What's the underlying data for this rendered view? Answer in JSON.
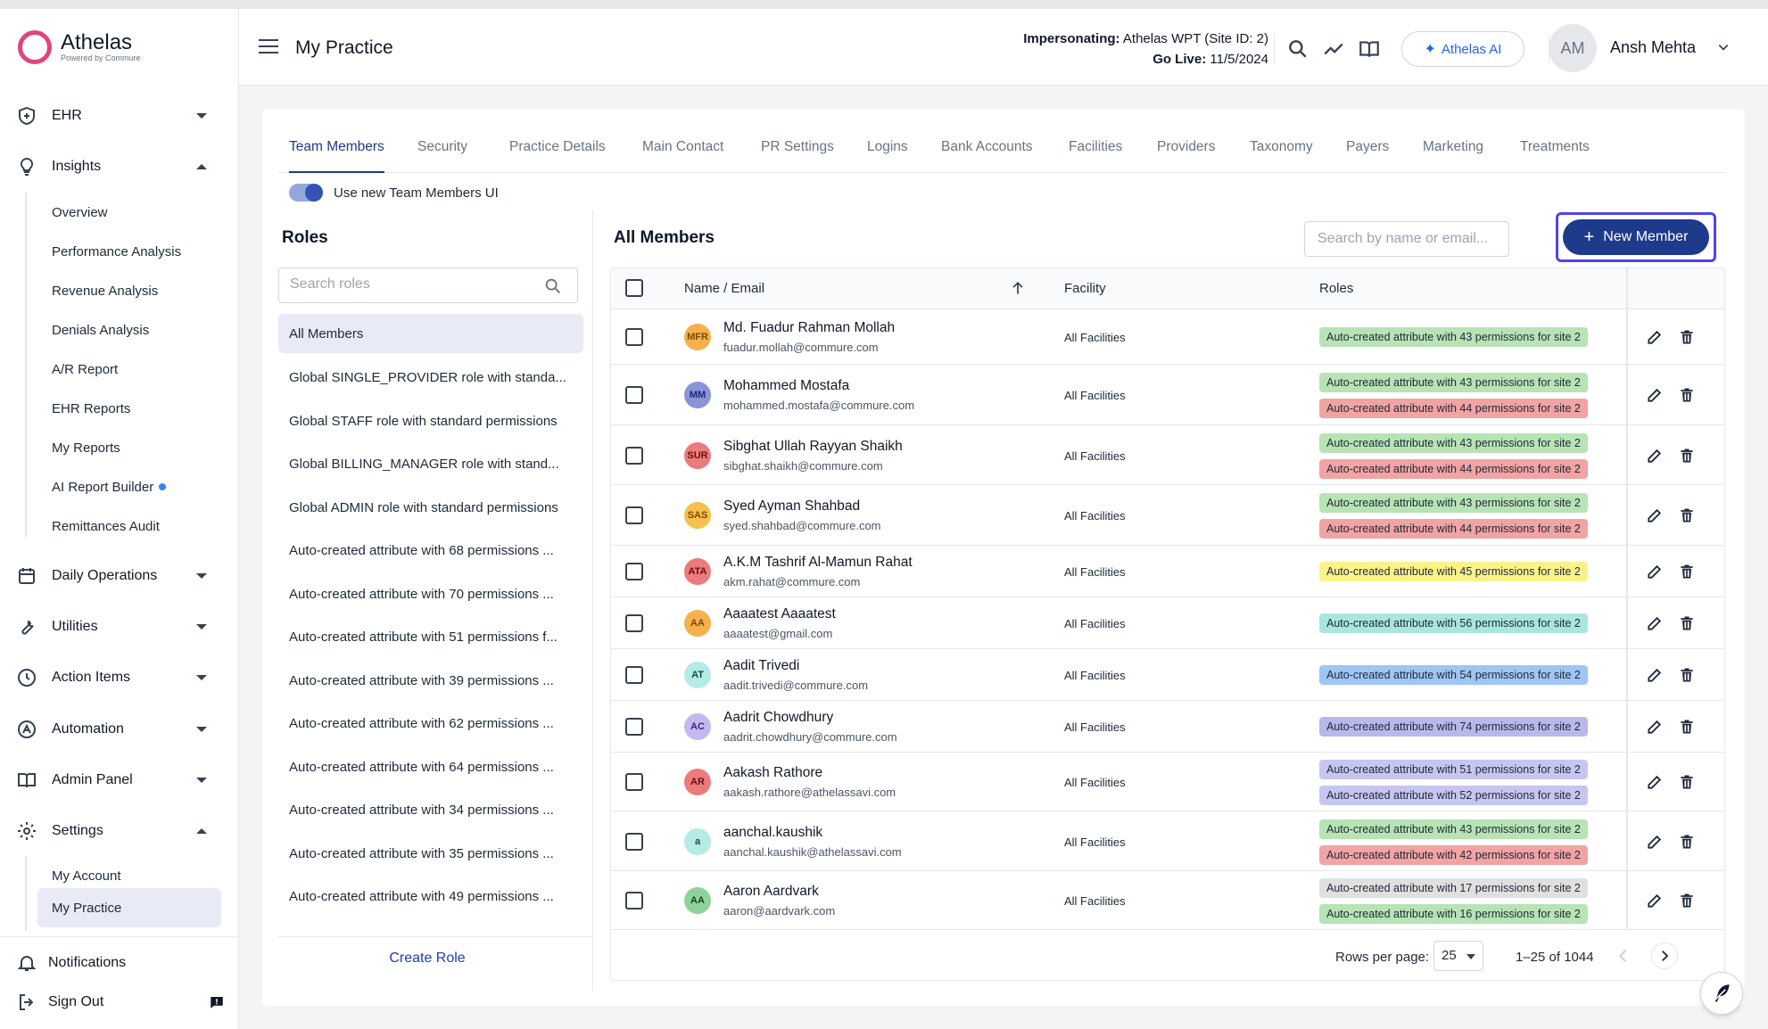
{
  "app": {
    "name": "Athelas",
    "tagline": "Powered by Commure"
  },
  "header": {
    "page_title": "My Practice",
    "impersonating_label": "Impersonating:",
    "impersonating_value": "Athelas WPT (Site ID: 2)",
    "go_live_label": "Go Live:",
    "go_live_value": "11/5/2024",
    "ai_button": "Athelas AI",
    "user_initials": "AM",
    "user_name": "Ansh Mehta"
  },
  "sidebar": {
    "sections": [
      {
        "label": "EHR",
        "icon": "shield-icon",
        "expanded": false
      },
      {
        "label": "Insights",
        "icon": "lightbulb-icon",
        "expanded": true
      },
      {
        "label": "Daily Operations",
        "icon": "calendar-icon",
        "expanded": false
      },
      {
        "label": "Utilities",
        "icon": "wrench-icon",
        "expanded": false
      },
      {
        "label": "Action Items",
        "icon": "clock-icon",
        "expanded": false
      },
      {
        "label": "Automation",
        "icon": "automation-icon",
        "expanded": false
      },
      {
        "label": "Admin Panel",
        "icon": "book-icon",
        "expanded": false
      },
      {
        "label": "Settings",
        "icon": "gear-icon",
        "expanded": true
      }
    ],
    "insights_items": [
      "Overview",
      "Performance Analysis",
      "Revenue Analysis",
      "Denials Analysis",
      "A/R Report",
      "EHR Reports",
      "My Reports",
      "AI Report Builder",
      "Remittances Audit"
    ],
    "settings_items": [
      "My Account",
      "My Practice"
    ],
    "notifications": "Notifications",
    "sign_out": "Sign Out"
  },
  "tabs": [
    "Team Members",
    "Security",
    "Practice Details",
    "Main Contact",
    "PR Settings",
    "Logins",
    "Bank Accounts",
    "Facilities",
    "Providers",
    "Taxonomy",
    "Payers",
    "Marketing",
    "Treatments"
  ],
  "toggle_label": "Use new Team Members UI",
  "roles": {
    "title": "Roles",
    "search_placeholder": "Search roles",
    "items": [
      "All Members",
      "Global SINGLE_PROVIDER role with standa...",
      "Global STAFF role with standard permissions",
      "Global BILLING_MANAGER role with stand...",
      "Global ADMIN role with standard permissions",
      "Auto-created attribute with 68 permissions ...",
      "Auto-created attribute with 70 permissions ...",
      "Auto-created attribute with 51 permissions f...",
      "Auto-created attribute with 39 permissions ...",
      "Auto-created attribute with 62 permissions ...",
      "Auto-created attribute with 64 permissions ...",
      "Auto-created attribute with 34 permissions ...",
      "Auto-created attribute with 35 permissions ...",
      "Auto-created attribute with 49 permissions ..."
    ],
    "create_label": "Create Role"
  },
  "members": {
    "title": "All Members",
    "search_placeholder": "Search by name or email...",
    "new_button": "New Member",
    "columns": {
      "name": "Name / Email",
      "facility": "Facility",
      "roles": "Roles"
    },
    "rows": [
      {
        "initials": "MFR",
        "avatar_bg": "#f6b04d",
        "avatar_fg": "#7a4a00",
        "name": "Md. Fuadur Rahman Mollah",
        "email": "fuadur.mollah@commure.com",
        "facility": "All Facilities",
        "roles": [
          {
            "text": "Auto-created attribute with 43 permissions for site 2",
            "color": "#b7e3b5"
          }
        ]
      },
      {
        "initials": "MM",
        "avatar_bg": "#8b93d9",
        "avatar_fg": "#1e2a6b",
        "name": "Mohammed Mostafa",
        "email": "mohammed.mostafa@commure.com",
        "facility": "All Facilities",
        "roles": [
          {
            "text": "Auto-created attribute with 43 permissions for site 2",
            "color": "#b7e3b5"
          },
          {
            "text": "Auto-created attribute with 44 permissions for site 2",
            "color": "#f2a3a3"
          }
        ]
      },
      {
        "initials": "SUR",
        "avatar_bg": "#ec7b7b",
        "avatar_fg": "#6b1111",
        "name": "Sibghat Ullah Rayyan Shaikh",
        "email": "sibghat.shaikh@commure.com",
        "facility": "All Facilities",
        "roles": [
          {
            "text": "Auto-created attribute with 43 permissions for site 2",
            "color": "#b7e3b5"
          },
          {
            "text": "Auto-created attribute with 44 permissions for site 2",
            "color": "#f2a3a3"
          }
        ]
      },
      {
        "initials": "SAS",
        "avatar_bg": "#f6c04d",
        "avatar_fg": "#7a4a00",
        "name": "Syed Ayman Shahbad",
        "email": "syed.shahbad@commure.com",
        "facility": "All Facilities",
        "roles": [
          {
            "text": "Auto-created attribute with 43 permissions for site 2",
            "color": "#b7e3b5"
          },
          {
            "text": "Auto-created attribute with 44 permissions for site 2",
            "color": "#f2a3a3"
          }
        ]
      },
      {
        "initials": "ATA",
        "avatar_bg": "#ec7b7b",
        "avatar_fg": "#6b1111",
        "name": "A.K.M Tashrif Al-Mamun Rahat",
        "email": "akm.rahat@commure.com",
        "facility": "All Facilities",
        "roles": [
          {
            "text": "Auto-created attribute with 45 permissions for site 2",
            "color": "#fbf28a"
          }
        ]
      },
      {
        "initials": "AA",
        "avatar_bg": "#f6b04d",
        "avatar_fg": "#7a4a00",
        "name": "Aaaatest Aaaatest",
        "email": "aaaatest@gmail.com",
        "facility": "All Facilities",
        "roles": [
          {
            "text": "Auto-created attribute with 56 permissions for site 2",
            "color": "#a9e6e0"
          }
        ]
      },
      {
        "initials": "AT",
        "avatar_bg": "#b5ebe6",
        "avatar_fg": "#0f4f49",
        "name": "Aadit Trivedi",
        "email": "aadit.trivedi@commure.com",
        "facility": "All Facilities",
        "roles": [
          {
            "text": "Auto-created attribute with 54 permissions for site 2",
            "color": "#9ec6f5"
          }
        ]
      },
      {
        "initials": "AC",
        "avatar_bg": "#c4b8ef",
        "avatar_fg": "#3a2a7a",
        "name": "Aadrit Chowdhury",
        "email": "aadrit.chowdhury@commure.com",
        "facility": "All Facilities",
        "roles": [
          {
            "text": "Auto-created attribute with 74 permissions for site 2",
            "color": "#b9b8ec"
          }
        ]
      },
      {
        "initials": "AR",
        "avatar_bg": "#ec7b7b",
        "avatar_fg": "#6b1111",
        "name": "Aakash Rathore",
        "email": "aakash.rathore@athelassavi.com",
        "facility": "All Facilities",
        "roles": [
          {
            "text": "Auto-created attribute with 51 permissions for site 2",
            "color": "#c6c6f0"
          },
          {
            "text": "Auto-created attribute with 52 permissions for site 2",
            "color": "#c6c6f0"
          }
        ]
      },
      {
        "initials": "a",
        "avatar_bg": "#b5ebe6",
        "avatar_fg": "#0f4f49",
        "name": "aanchal.kaushik",
        "email": "aanchal.kaushik@athelassavi.com",
        "facility": "All Facilities",
        "roles": [
          {
            "text": "Auto-created attribute with 43 permissions for site 2",
            "color": "#b7e3b5"
          },
          {
            "text": "Auto-created attribute with 42 permissions for site 2",
            "color": "#f2a3a3"
          }
        ]
      },
      {
        "initials": "AA",
        "avatar_bg": "#8fd19a",
        "avatar_fg": "#0f4a1c",
        "name": "Aaron Aardvark",
        "email": "aaron@aardvark.com",
        "facility": "All Facilities",
        "roles": [
          {
            "text": "Auto-created attribute with 17 permissions for site 2",
            "color": "#e0e0e0"
          },
          {
            "text": "Auto-created attribute with 16 permissions for site 2",
            "color": "#b7e3b5"
          }
        ]
      }
    ]
  },
  "pagination": {
    "rows_per_page_label": "Rows per page:",
    "rows_per_page": "25",
    "range": "1–25 of 1044"
  }
}
